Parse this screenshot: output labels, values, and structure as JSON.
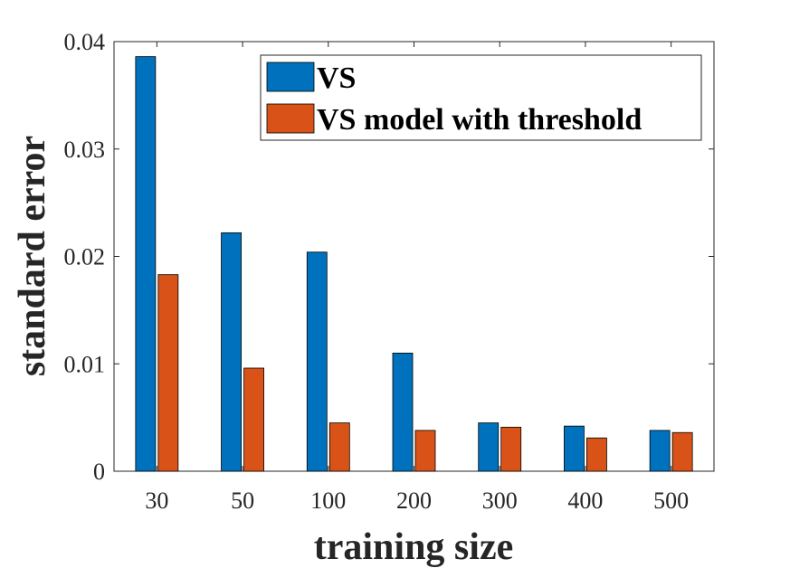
{
  "chart_data": {
    "type": "bar",
    "title": "",
    "xlabel": "training size",
    "ylabel": "standard error",
    "categories": [
      "30",
      "50",
      "100",
      "200",
      "300",
      "400",
      "500"
    ],
    "ylim": [
      0,
      0.04
    ],
    "yticks": [
      0,
      0.01,
      0.02,
      0.03,
      0.04
    ],
    "ytick_labels": [
      "0",
      "0.01",
      "0.02",
      "0.03",
      "0.04"
    ],
    "grid": false,
    "legend_position": "top-right",
    "series": [
      {
        "name": "VS",
        "color": "#0072BD",
        "values": [
          0.0386,
          0.0222,
          0.0204,
          0.011,
          0.0045,
          0.0042,
          0.0038
        ]
      },
      {
        "name": "VS model with threshold",
        "color": "#D95319",
        "values": [
          0.0183,
          0.0096,
          0.0045,
          0.0038,
          0.0041,
          0.0031,
          0.0036
        ]
      }
    ]
  }
}
